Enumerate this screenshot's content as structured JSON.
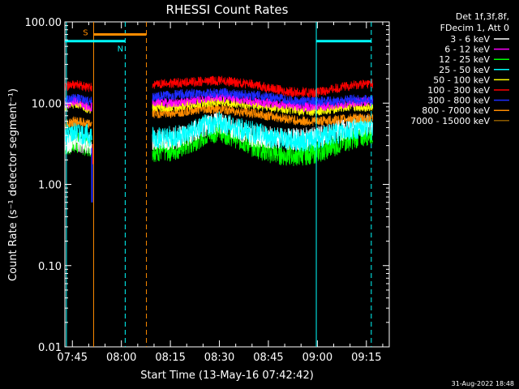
{
  "chart_data": {
    "type": "line",
    "title": "RHESSI Count Rates",
    "xlabel": "Start Time (13-May-16 07:42:42)",
    "ylabel": "Count Rate (s⁻¹ detector segment⁻¹)",
    "y_scale": "log",
    "ylim": [
      0.01,
      100
    ],
    "xlim": [
      "07:42:42",
      "09:22:00"
    ],
    "x_tick_labels": [
      "07:45",
      "08:00",
      "08:15",
      "08:30",
      "08:45",
      "09:00",
      "09:15"
    ],
    "y_tick_labels": [
      "100.00",
      "10.00",
      "1.00",
      "0.10",
      "0.01"
    ],
    "legend_position": "top-right",
    "legend_header": [
      "Det 1f,3f,8f,",
      "FDecim 1, Att 0"
    ],
    "data_gap": [
      "07:51:30",
      "08:09:30"
    ],
    "series": [
      {
        "name": "3 - 6 keV",
        "color": "#ffffff",
        "values": [
          [
            "07:43",
            3.2
          ],
          [
            "07:46",
            3.6
          ],
          [
            "07:50",
            3.0
          ],
          [
            "08:10",
            3.4
          ],
          [
            "08:15",
            3.6
          ],
          [
            "08:20",
            4.0
          ],
          [
            "08:25",
            5.2
          ],
          [
            "08:30",
            5.8
          ],
          [
            "08:35",
            4.8
          ],
          [
            "08:40",
            4.0
          ],
          [
            "08:45",
            3.8
          ],
          [
            "08:50",
            3.6
          ],
          [
            "08:55",
            3.6
          ],
          [
            "09:00",
            3.8
          ],
          [
            "09:05",
            4.4
          ],
          [
            "09:10",
            5.0
          ],
          [
            "09:16",
            5.4
          ]
        ]
      },
      {
        "name": "6 - 12 keV",
        "color": "#ff00ff",
        "values": [
          [
            "07:43",
            9.5
          ],
          [
            "07:46",
            10.5
          ],
          [
            "07:50",
            9.0
          ],
          [
            "08:10",
            10.5
          ],
          [
            "08:15",
            10.0
          ],
          [
            "08:20",
            10.5
          ],
          [
            "08:25",
            11.5
          ],
          [
            "08:30",
            12.0
          ],
          [
            "08:35",
            11.5
          ],
          [
            "08:40",
            10.5
          ],
          [
            "08:45",
            10.0
          ],
          [
            "08:50",
            9.5
          ],
          [
            "08:55",
            9.0
          ],
          [
            "09:00",
            9.0
          ],
          [
            "09:05",
            9.5
          ],
          [
            "09:10",
            10.0
          ],
          [
            "09:16",
            10.5
          ]
        ]
      },
      {
        "name": "12 - 25 keV",
        "color": "#00ff00",
        "values": [
          [
            "07:43",
            3.0
          ],
          [
            "07:46",
            3.3
          ],
          [
            "07:50",
            3.0
          ],
          [
            "08:10",
            2.6
          ],
          [
            "08:15",
            2.6
          ],
          [
            "08:20",
            3.0
          ],
          [
            "08:25",
            4.0
          ],
          [
            "08:30",
            4.6
          ],
          [
            "08:35",
            3.8
          ],
          [
            "08:40",
            3.0
          ],
          [
            "08:45",
            2.5
          ],
          [
            "08:50",
            2.3
          ],
          [
            "08:55",
            2.3
          ],
          [
            "09:00",
            2.5
          ],
          [
            "09:05",
            3.0
          ],
          [
            "09:10",
            3.6
          ],
          [
            "09:16",
            4.2
          ]
        ]
      },
      {
        "name": "25 - 50 keV",
        "color": "#00ffff",
        "values": [
          [
            "07:43",
            4.2
          ],
          [
            "07:46",
            4.5
          ],
          [
            "07:50",
            4.0
          ],
          [
            "08:10",
            3.8
          ],
          [
            "08:15",
            3.8
          ],
          [
            "08:20",
            4.2
          ],
          [
            "08:25",
            5.2
          ],
          [
            "08:30",
            5.8
          ],
          [
            "08:35",
            5.0
          ],
          [
            "08:40",
            4.4
          ],
          [
            "08:45",
            3.9
          ],
          [
            "08:50",
            3.6
          ],
          [
            "08:55",
            3.4
          ],
          [
            "09:00",
            3.6
          ],
          [
            "09:05",
            4.2
          ],
          [
            "09:10",
            4.8
          ],
          [
            "09:16",
            5.2
          ]
        ]
      },
      {
        "name": "50 - 100 keV",
        "color": "#ffff00",
        "values": [
          [
            "07:43",
            9.0
          ],
          [
            "07:46",
            10.0
          ],
          [
            "07:50",
            8.5
          ],
          [
            "08:10",
            9.0
          ],
          [
            "08:15",
            9.0
          ],
          [
            "08:20",
            9.5
          ],
          [
            "08:25",
            10.0
          ],
          [
            "08:30",
            10.5
          ],
          [
            "08:35",
            10.0
          ],
          [
            "08:40",
            9.5
          ],
          [
            "08:45",
            9.0
          ],
          [
            "08:50",
            8.5
          ],
          [
            "08:55",
            8.0
          ],
          [
            "09:00",
            8.0
          ],
          [
            "09:05",
            8.5
          ],
          [
            "09:10",
            9.0
          ],
          [
            "09:16",
            9.0
          ]
        ]
      },
      {
        "name": "100 - 300 keV",
        "color": "#ff0000",
        "values": [
          [
            "07:43",
            16.0
          ],
          [
            "07:46",
            17.0
          ],
          [
            "07:50",
            15.5
          ],
          [
            "08:10",
            17.0
          ],
          [
            "08:15",
            17.5
          ],
          [
            "08:20",
            18.0
          ],
          [
            "08:25",
            18.5
          ],
          [
            "08:30",
            19.0
          ],
          [
            "08:35",
            18.0
          ],
          [
            "08:40",
            17.0
          ],
          [
            "08:45",
            15.5
          ],
          [
            "08:50",
            14.0
          ],
          [
            "08:55",
            13.5
          ],
          [
            "09:00",
            13.5
          ],
          [
            "09:05",
            15.0
          ],
          [
            "09:10",
            16.5
          ],
          [
            "09:16",
            17.5
          ]
        ]
      },
      {
        "name": "300 - 800 keV",
        "color": "#1e2cff",
        "values": [
          [
            "07:43",
            11.0
          ],
          [
            "07:46",
            11.5
          ],
          [
            "07:50",
            10.5
          ],
          [
            "08:10",
            12.0
          ],
          [
            "08:15",
            12.5
          ],
          [
            "08:20",
            13.0
          ],
          [
            "08:25",
            13.0
          ],
          [
            "08:30",
            13.5
          ],
          [
            "08:35",
            13.0
          ],
          [
            "08:40",
            12.5
          ],
          [
            "08:45",
            12.0
          ],
          [
            "08:50",
            11.0
          ],
          [
            "08:55",
            10.5
          ],
          [
            "09:00",
            10.5
          ],
          [
            "09:05",
            10.5
          ],
          [
            "09:10",
            11.0
          ],
          [
            "09:16",
            11.0
          ]
        ]
      },
      {
        "name": "800 - 7000 keV",
        "color": "#ff8c00",
        "values": [
          [
            "07:43",
            5.5
          ],
          [
            "07:46",
            6.0
          ],
          [
            "07:50",
            5.5
          ],
          [
            "08:10",
            7.5
          ],
          [
            "08:15",
            7.5
          ],
          [
            "08:20",
            8.0
          ],
          [
            "08:25",
            8.5
          ],
          [
            "08:30",
            8.5
          ],
          [
            "08:35",
            8.0
          ],
          [
            "08:40",
            7.5
          ],
          [
            "08:45",
            7.0
          ],
          [
            "08:50",
            6.5
          ],
          [
            "08:55",
            6.0
          ],
          [
            "09:00",
            6.0
          ],
          [
            "09:05",
            6.2
          ],
          [
            "09:10",
            6.5
          ],
          [
            "09:16",
            6.5
          ]
        ]
      },
      {
        "name": "7000 - 15000 keV",
        "color": "#8b5a00",
        "values": []
      }
    ],
    "vertical_markers": [
      {
        "x": "07:43:10",
        "color": "#00ffff",
        "style": "solid"
      },
      {
        "x": "07:51:30",
        "color": "#ff8c00",
        "style": "solid"
      },
      {
        "x": "08:01:10",
        "color": "#00ffff",
        "style": "dashed"
      },
      {
        "x": "08:07:40",
        "color": "#ff8c00",
        "style": "dashed"
      },
      {
        "x": "08:59:40",
        "color": "#00ffff",
        "style": "solid"
      },
      {
        "x": "09:16:30",
        "color": "#00ffff",
        "style": "dashed"
      }
    ],
    "bars": [
      {
        "label": "S",
        "color": "#ff8c00",
        "from": "07:51:30",
        "to": "08:07:40",
        "y": 70
      },
      {
        "label": "N",
        "color": "#00ffff",
        "from": "07:42:42",
        "to": "08:01:10",
        "y": 58
      },
      {
        "label": "",
        "color": "#00ffff",
        "from": "08:59:40",
        "to": "09:16:30",
        "y": 58
      }
    ],
    "spike": {
      "x": "07:51:00",
      "low": 0.6,
      "high": 2.8
    }
  },
  "footer": {
    "timestamp": "31-Aug-2022 18:48"
  }
}
